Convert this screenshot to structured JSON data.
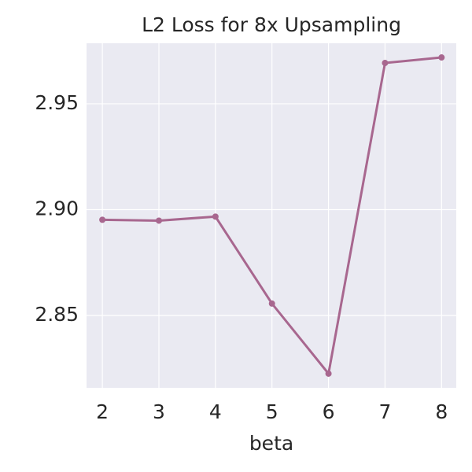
{
  "chart_data": {
    "type": "line",
    "title": "L2 Loss for 8x Upsampling",
    "x_label": "beta",
    "x": [
      2,
      3,
      4,
      5,
      6,
      7,
      8
    ],
    "series": [
      {
        "color": "#a8678f",
        "values": [
          2.8952,
          2.8948,
          2.8967,
          2.8556,
          2.8225,
          2.9693,
          2.9719
        ]
      }
    ],
    "xlim": [
      1.72,
      8.26
    ],
    "xticks": [
      2,
      3,
      4,
      5,
      6,
      7,
      8
    ],
    "ylim": [
      2.8158,
      2.9786
    ],
    "yticks": [
      2.85,
      {
        "value": 2.9,
        "label": "2.90"
      },
      2.95
    ],
    "grid": true
  }
}
